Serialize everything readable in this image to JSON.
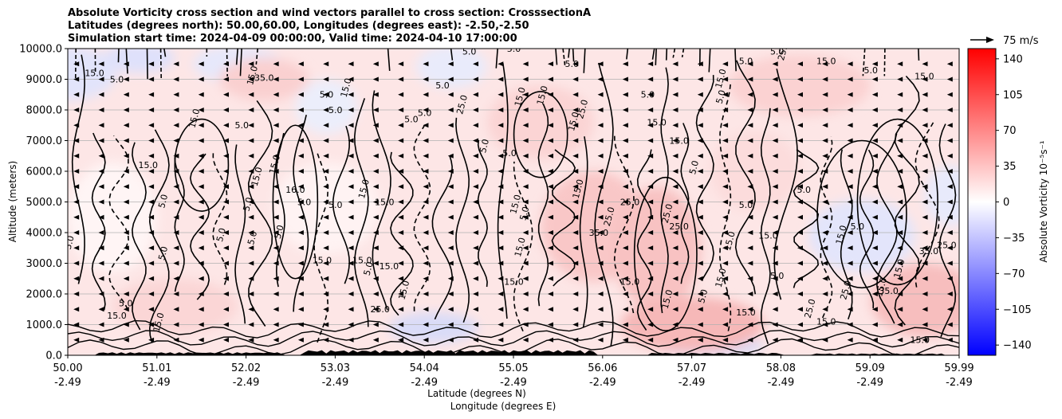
{
  "chart_data": {
    "type": "contour",
    "title_lines": [
      "Absolute Vorticity cross section and wind vectors parallel to cross section: CrosssectionA",
      "Latitudes (degrees north): 50.00,60.00, Longitudes (degrees east): -2.50,-2.50",
      "Simulation start time: 2024-04-09 00:00:00, Valid time: 2024-04-10 17:00:00"
    ],
    "xlabel_lat": "Latitude (degrees N)",
    "xlabel_lon": "Longitude (degrees E)",
    "ylabel": "Altitude (meters)",
    "x_ticks": [
      {
        "lat": "50.00",
        "lon": "-2.49"
      },
      {
        "lat": "51.01",
        "lon": "-2.49"
      },
      {
        "lat": "52.02",
        "lon": "-2.49"
      },
      {
        "lat": "53.03",
        "lon": "-2.49"
      },
      {
        "lat": "54.04",
        "lon": "-2.49"
      },
      {
        "lat": "55.05",
        "lon": "-2.49"
      },
      {
        "lat": "56.06",
        "lon": "-2.49"
      },
      {
        "lat": "57.07",
        "lon": "-2.49"
      },
      {
        "lat": "58.08",
        "lon": "-2.49"
      },
      {
        "lat": "59.09",
        "lon": "-2.49"
      },
      {
        "lat": "59.99",
        "lon": "-2.49"
      }
    ],
    "xlim": [
      50.0,
      59.99
    ],
    "y_ticks": [
      "0.0",
      "1000.0",
      "2000.0",
      "3000.0",
      "4000.0",
      "5000.0",
      "6000.0",
      "7000.0",
      "8000.0",
      "9000.0",
      "10000.0"
    ],
    "ylim": [
      0,
      10000
    ],
    "grid": "horizontal",
    "colorbar": {
      "label": "Absolute Vorticity 10⁻⁵s⁻¹",
      "ticks": [
        140,
        105,
        70,
        35,
        0,
        -35,
        -70,
        -105,
        -140
      ],
      "range": [
        -150,
        150
      ],
      "colormap": "bwr",
      "colors": {
        "low": "#0000ff",
        "mid": "#ffffff",
        "high": "#ff0000"
      }
    },
    "quiver_key": {
      "label": "75 m/s"
    },
    "contour_labels": [
      {
        "text": "5.0",
        "x": 50.05,
        "y": 3650
      },
      {
        "text": "15.0",
        "x": 50.3,
        "y": 9100
      },
      {
        "text": "5.0",
        "x": 50.55,
        "y": 8900
      },
      {
        "text": "15.0",
        "x": 50.9,
        "y": 6100
      },
      {
        "text": "5.0",
        "x": 51.1,
        "y": 5000
      },
      {
        "text": "15.0",
        "x": 51.45,
        "y": 7700
      },
      {
        "text": "5.0",
        "x": 51.75,
        "y": 3900
      },
      {
        "text": "5.0",
        "x": 51.1,
        "y": 3300
      },
      {
        "text": "15.0",
        "x": 51.05,
        "y": 1050
      },
      {
        "text": "5.0",
        "x": 50.65,
        "y": 1600
      },
      {
        "text": "15.0",
        "x": 50.55,
        "y": 1200
      },
      {
        "text": "15.0",
        "x": 52.1,
        "y": 9100
      },
      {
        "text": "5.0",
        "x": 51.95,
        "y": 7400
      },
      {
        "text": "15.0",
        "x": 52.15,
        "y": 5800
      },
      {
        "text": "5.0",
        "x": 52.05,
        "y": 4900
      },
      {
        "text": "5.0",
        "x": 52.1,
        "y": 3800
      },
      {
        "text": "35.0",
        "x": 52.2,
        "y": 8950
      },
      {
        "text": "15.0",
        "x": 52.35,
        "y": 6200
      },
      {
        "text": "16.0",
        "x": 52.55,
        "y": 5300
      },
      {
        "text": "5.0",
        "x": 52.4,
        "y": 4000
      },
      {
        "text": "5.0",
        "x": 53.0,
        "y": 7900
      },
      {
        "text": "5.0",
        "x": 52.9,
        "y": 8400
      },
      {
        "text": "15.0",
        "x": 53.15,
        "y": 8700
      },
      {
        "text": "5.0",
        "x": 53.0,
        "y": 4800
      },
      {
        "text": "5.0",
        "x": 52.65,
        "y": 4900
      },
      {
        "text": "15.0",
        "x": 52.85,
        "y": 3000
      },
      {
        "text": "15.0",
        "x": 53.3,
        "y": 3000
      },
      {
        "text": "5.0",
        "x": 53.4,
        "y": 2800
      },
      {
        "text": "15.0",
        "x": 53.35,
        "y": 5400
      },
      {
        "text": "15.0",
        "x": 53.55,
        "y": 4900
      },
      {
        "text": "15.0",
        "x": 53.6,
        "y": 2800
      },
      {
        "text": "15.0",
        "x": 53.8,
        "y": 2100
      },
      {
        "text": "25.0",
        "x": 53.5,
        "y": 1400
      },
      {
        "text": "5.0",
        "x": 53.85,
        "y": 7600
      },
      {
        "text": "5.0",
        "x": 54.0,
        "y": 7800
      },
      {
        "text": "5.0",
        "x": 54.2,
        "y": 8700
      },
      {
        "text": "25.0",
        "x": 54.45,
        "y": 8150
      },
      {
        "text": "5.0",
        "x": 54.7,
        "y": 6800
      },
      {
        "text": "5.0",
        "x": 54.95,
        "y": 6500
      },
      {
        "text": "5.0",
        "x": 54.5,
        "y": 9800
      },
      {
        "text": "5.0",
        "x": 55.0,
        "y": 9900
      },
      {
        "text": "15.0",
        "x": 55.1,
        "y": 8400
      },
      {
        "text": "15.0",
        "x": 55.35,
        "y": 8450
      },
      {
        "text": "15.0",
        "x": 55.05,
        "y": 4900
      },
      {
        "text": "5.0",
        "x": 55.15,
        "y": 4600
      },
      {
        "text": "15.0",
        "x": 55.1,
        "y": 3500
      },
      {
        "text": "15.0",
        "x": 55.0,
        "y": 2300
      },
      {
        "text": "15.0",
        "x": 55.75,
        "y": 5400
      },
      {
        "text": "15.0",
        "x": 55.7,
        "y": 7600
      },
      {
        "text": "25.0",
        "x": 55.8,
        "y": 8000
      },
      {
        "text": "5.0",
        "x": 55.65,
        "y": 9400
      },
      {
        "text": "25.0",
        "x": 56.1,
        "y": 4500
      },
      {
        "text": "25.0",
        "x": 56.3,
        "y": 4900
      },
      {
        "text": "35.0",
        "x": 55.95,
        "y": 3900
      },
      {
        "text": "15.0",
        "x": 56.3,
        "y": 2300
      },
      {
        "text": "15.0",
        "x": 56.6,
        "y": 7500
      },
      {
        "text": "5.0",
        "x": 56.5,
        "y": 8400
      },
      {
        "text": "25.0",
        "x": 56.75,
        "y": 4600
      },
      {
        "text": "25.0",
        "x": 56.85,
        "y": 4100
      },
      {
        "text": "15.0",
        "x": 56.85,
        "y": 6900
      },
      {
        "text": "5.0",
        "x": 57.05,
        "y": 6100
      },
      {
        "text": "15.0",
        "x": 56.75,
        "y": 1800
      },
      {
        "text": "5.0",
        "x": 57.15,
        "y": 1900
      },
      {
        "text": "15.0",
        "x": 57.35,
        "y": 2500
      },
      {
        "text": "15.0",
        "x": 57.35,
        "y": 9000
      },
      {
        "text": "5.0",
        "x": 57.35,
        "y": 8400
      },
      {
        "text": "5.0",
        "x": 57.6,
        "y": 9500
      },
      {
        "text": "5.0",
        "x": 57.95,
        "y": 9800
      },
      {
        "text": "5.0",
        "x": 57.6,
        "y": 4800
      },
      {
        "text": "15.0",
        "x": 57.85,
        "y": 3800
      },
      {
        "text": "15.0",
        "x": 57.45,
        "y": 3700
      },
      {
        "text": "5.0",
        "x": 57.95,
        "y": 2500
      },
      {
        "text": "15.0",
        "x": 57.6,
        "y": 1300
      },
      {
        "text": "25.0",
        "x": 58.05,
        "y": 9900
      },
      {
        "text": "15.0",
        "x": 58.5,
        "y": 9500
      },
      {
        "text": "5.0",
        "x": 58.25,
        "y": 5300
      },
      {
        "text": "15.0",
        "x": 58.7,
        "y": 3900
      },
      {
        "text": "25.0",
        "x": 58.75,
        "y": 2100
      },
      {
        "text": "5.0",
        "x": 58.85,
        "y": 4100
      },
      {
        "text": "15.0",
        "x": 59.15,
        "y": 2200
      },
      {
        "text": "35.0",
        "x": 59.2,
        "y": 2000
      },
      {
        "text": "35.0",
        "x": 59.65,
        "y": 3300
      },
      {
        "text": "25.0",
        "x": 59.85,
        "y": 3500
      },
      {
        "text": "15.0",
        "x": 59.6,
        "y": 9000
      },
      {
        "text": "5.0",
        "x": 59.0,
        "y": 9200
      },
      {
        "text": "15.0",
        "x": 59.35,
        "y": 2800
      },
      {
        "text": "15.0",
        "x": 59.55,
        "y": 400
      },
      {
        "text": "15.0",
        "x": 58.5,
        "y": 1000
      },
      {
        "text": "25.0",
        "x": 58.35,
        "y": 1500
      }
    ]
  }
}
